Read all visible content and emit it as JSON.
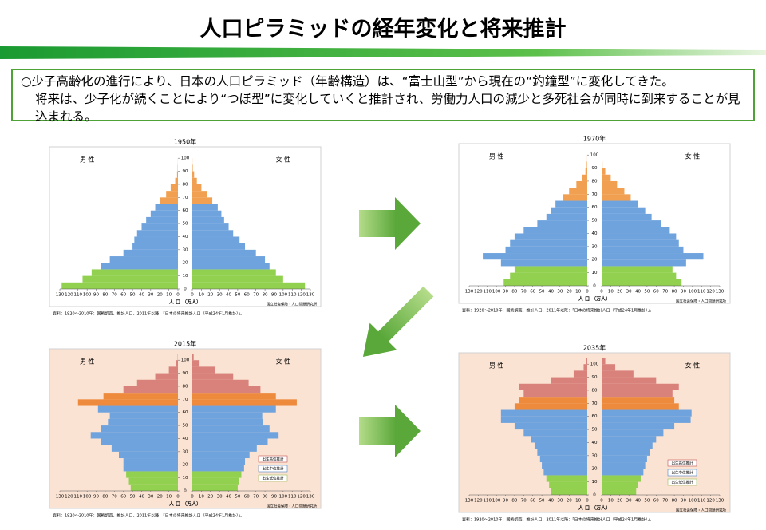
{
  "title": "人口ピラミッドの経年変化と将来推計",
  "note": [
    "○少子高齢化の進行により、日本の人口ピラミッド（年齢構造）は、“富士山型”から現在の“釣鐘型”に変化してきた。",
    "将来は、少子化が続くことにより“つぼ型”に変化していくと推計され、労働力人口の減少と多死社会が同時に到来することが見込まれる。"
  ],
  "chart_data": [
    {
      "type": "pyramid",
      "title": "1950年",
      "xlabel": "人 口 （万人）",
      "source": "資料：1920～2010年：国勢調査、推計人口、2011年以降：「日本の将来推計人口（平成24年1月推計）」。",
      "credit": "国立社会保障・人口問題研究所",
      "background": "#ffffff",
      "ages": [
        0,
        5,
        10,
        15,
        20,
        25,
        30,
        35,
        40,
        45,
        50,
        55,
        60,
        65,
        70,
        75,
        80,
        85,
        90,
        95,
        100
      ],
      "series": [
        {
          "name": "男 性",
          "values": [
            128,
            105,
            95,
            85,
            75,
            60,
            50,
            48,
            45,
            40,
            35,
            30,
            25,
            20,
            13,
            8,
            3,
            1,
            0.3,
            0.1,
            0
          ]
        },
        {
          "name": "女 性",
          "values": [
            124,
            100,
            92,
            85,
            80,
            70,
            58,
            52,
            45,
            40,
            35,
            32,
            28,
            22,
            16,
            10,
            5,
            2,
            0.5,
            0.1,
            0
          ]
        }
      ],
      "colors": [
        "#92d050",
        "#92d050",
        "#92d050",
        "#6fa3dd",
        "#6fa3dd",
        "#6fa3dd",
        "#6fa3dd",
        "#6fa3dd",
        "#6fa3dd",
        "#6fa3dd",
        "#6fa3dd",
        "#6fa3dd",
        "#6fa3dd",
        "#f0a050",
        "#f0a050",
        "#f0a050",
        "#f0a050",
        "#f0a050",
        "#f0a050",
        "#f0a050",
        "#f0a050"
      ],
      "xlim": [
        0,
        130
      ],
      "xticks": [
        0,
        10,
        20,
        30,
        40,
        50,
        60,
        70,
        80,
        90,
        100,
        110,
        120,
        130
      ],
      "ylim": [
        0,
        105
      ],
      "yticks": [
        0,
        10,
        20,
        30,
        40,
        50,
        60,
        70,
        80,
        90,
        100
      ]
    },
    {
      "type": "pyramid",
      "title": "1970年",
      "xlabel": "人 口 （万人）",
      "source": "資料：1920～2010年：国勢調査、推計人口、2011年以降：「日本の将来推計人口（平成24年1月推計）」。",
      "credit": "国立社会保障・人口問題研究所",
      "background": "#ffffff",
      "ages": [
        0,
        5,
        10,
        15,
        20,
        25,
        30,
        35,
        40,
        45,
        50,
        55,
        60,
        65,
        70,
        75,
        80,
        85,
        90,
        95,
        100
      ],
      "series": [
        {
          "name": "男 性",
          "values": [
            92,
            85,
            80,
            95,
            115,
            90,
            85,
            80,
            70,
            55,
            45,
            40,
            35,
            27,
            20,
            12,
            6,
            2,
            0.5,
            0.1,
            0
          ]
        },
        {
          "name": "女 性",
          "values": [
            88,
            82,
            78,
            93,
            112,
            90,
            85,
            82,
            75,
            65,
            55,
            48,
            40,
            32,
            25,
            17,
            10,
            4,
            1,
            0.2,
            0
          ]
        }
      ],
      "colors": [
        "#92d050",
        "#92d050",
        "#92d050",
        "#6fa3dd",
        "#6fa3dd",
        "#6fa3dd",
        "#6fa3dd",
        "#6fa3dd",
        "#6fa3dd",
        "#6fa3dd",
        "#6fa3dd",
        "#6fa3dd",
        "#6fa3dd",
        "#f0a050",
        "#f0a050",
        "#f0a050",
        "#f0a050",
        "#f0a050",
        "#f0a050",
        "#f0a050",
        "#f0a050"
      ],
      "xlim": [
        0,
        130
      ],
      "xticks": [
        0,
        10,
        20,
        30,
        40,
        50,
        60,
        70,
        80,
        90,
        100,
        110,
        120,
        130
      ],
      "ylim": [
        0,
        105
      ],
      "yticks": [
        0,
        10,
        20,
        30,
        40,
        50,
        60,
        70,
        80,
        90,
        100
      ]
    },
    {
      "type": "pyramid",
      "title": "2015年",
      "xlabel": "人 口 （万人）",
      "source": "資料：1920～2010年：国勢調査、推計人口、2011年以降：「日本の将来推計人口（平成24年1月推計）」。",
      "credit": "国立社会保障・人口問題研究所",
      "background": "#fbe3d3",
      "legend": [
        "出生高位推計",
        "出生中位推計",
        "出生低位推計"
      ],
      "ages": [
        0,
        5,
        10,
        15,
        20,
        25,
        30,
        35,
        40,
        45,
        50,
        55,
        60,
        65,
        70,
        75,
        80,
        85,
        90,
        95,
        100
      ],
      "series": [
        {
          "name": "男 性",
          "values": [
            52,
            54,
            57,
            60,
            60,
            65,
            73,
            85,
            96,
            85,
            77,
            75,
            88,
            110,
            82,
            60,
            45,
            25,
            10,
            2,
            0.3
          ]
        },
        {
          "name": "女 性",
          "values": [
            50,
            51,
            54,
            57,
            58,
            63,
            71,
            83,
            95,
            85,
            78,
            77,
            92,
            115,
            92,
            75,
            62,
            45,
            25,
            8,
            1.5
          ]
        }
      ],
      "colors": [
        "#92d050",
        "#92d050",
        "#92d050",
        "#6fa3dd",
        "#6fa3dd",
        "#6fa3dd",
        "#6fa3dd",
        "#6fa3dd",
        "#6fa3dd",
        "#6fa3dd",
        "#6fa3dd",
        "#6fa3dd",
        "#6fa3dd",
        "#ee8a3c",
        "#ee8a3c",
        "#d9827c",
        "#d9827c",
        "#d9827c",
        "#d9827c",
        "#d9827c",
        "#d9827c"
      ],
      "xlim": [
        0,
        130
      ],
      "xticks": [
        0,
        10,
        20,
        30,
        40,
        50,
        60,
        70,
        80,
        90,
        100,
        110,
        120,
        130
      ],
      "ylim": [
        0,
        105
      ],
      "yticks": [
        0,
        10,
        20,
        30,
        40,
        50,
        60,
        70,
        80,
        90,
        100
      ]
    },
    {
      "type": "pyramid",
      "title": "2035年",
      "xlabel": "人 口 （万人）",
      "source": "資料：1920～2010年：国勢調査、推計人口、2011年以降：「日本の将来推計人口（平成24年1月推計）」。",
      "credit": "国立社会保障・人口問題研究所",
      "background": "#fbe3d3",
      "legend": [
        "出生高位推計",
        "出生中位推計",
        "出生低位推計"
      ],
      "ages": [
        0,
        5,
        10,
        15,
        20,
        25,
        30,
        35,
        40,
        45,
        50,
        55,
        60,
        65,
        70,
        75,
        80,
        85,
        90,
        95,
        100
      ],
      "series": [
        {
          "name": "男 性",
          "values": [
            40,
            42,
            45,
            48,
            50,
            52,
            55,
            58,
            62,
            70,
            80,
            95,
            95,
            80,
            75,
            70,
            75,
            40,
            15,
            4,
            1
          ]
        },
        {
          "name": "女 性",
          "values": [
            38,
            40,
            43,
            46,
            48,
            50,
            53,
            56,
            60,
            68,
            80,
            98,
            99,
            85,
            80,
            78,
            85,
            60,
            35,
            15,
            4
          ]
        }
      ],
      "colors": [
        "#92d050",
        "#92d050",
        "#92d050",
        "#6fa3dd",
        "#6fa3dd",
        "#6fa3dd",
        "#6fa3dd",
        "#6fa3dd",
        "#6fa3dd",
        "#6fa3dd",
        "#6fa3dd",
        "#6fa3dd",
        "#6fa3dd",
        "#ee8a3c",
        "#ee8a3c",
        "#d9827c",
        "#d9827c",
        "#d9827c",
        "#d9827c",
        "#d9827c",
        "#d9827c"
      ],
      "xlim": [
        0,
        130
      ],
      "xticks": [
        0,
        10,
        20,
        30,
        40,
        50,
        60,
        70,
        80,
        90,
        100,
        110,
        120,
        130
      ],
      "ylim": [
        0,
        105
      ],
      "yticks": [
        0,
        10,
        20,
        30,
        40,
        50,
        60,
        70,
        80,
        90,
        100
      ]
    }
  ]
}
